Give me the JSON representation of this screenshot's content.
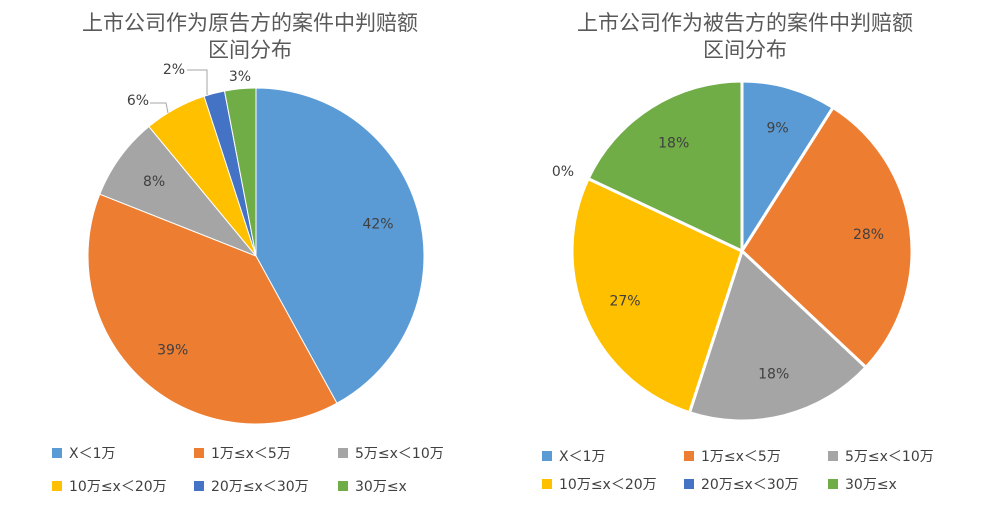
{
  "chart_data": [
    {
      "type": "pie",
      "title_lines": [
        "上市公司作为原告方的案件中判赔额",
        "区间分布"
      ],
      "categories": [
        "X＜1万",
        "1万≤x＜5万",
        "5万≤x＜10万",
        "10万≤x＜20万",
        "20万≤x＜30万",
        "30万≤x"
      ],
      "values": [
        42,
        39,
        8,
        6,
        2,
        3
      ],
      "labels": [
        "42%",
        "39%",
        "8%",
        "6%",
        "2%",
        "3%"
      ],
      "colors": [
        "#5B9BD5",
        "#ED7D31",
        "#A5A5A5",
        "#FFC000",
        "#4472C4",
        "#70AD47"
      ],
      "legend": "bottom"
    },
    {
      "type": "pie",
      "title_lines": [
        "上市公司作为被告方的案件中判赔额",
        "区间分布"
      ],
      "categories": [
        "X＜1万",
        "1万≤x＜5万",
        "5万≤x＜10万",
        "10万≤x＜20万",
        "20万≤x＜30万",
        "30万≤x"
      ],
      "values": [
        9,
        28,
        18,
        27,
        0,
        18
      ],
      "labels": [
        "9%",
        "28%",
        "18%",
        "27%",
        "0%",
        "18%"
      ],
      "colors": [
        "#5B9BD5",
        "#ED7D31",
        "#A5A5A5",
        "#FFC000",
        "#4472C4",
        "#70AD47"
      ],
      "legend": "bottom"
    }
  ]
}
